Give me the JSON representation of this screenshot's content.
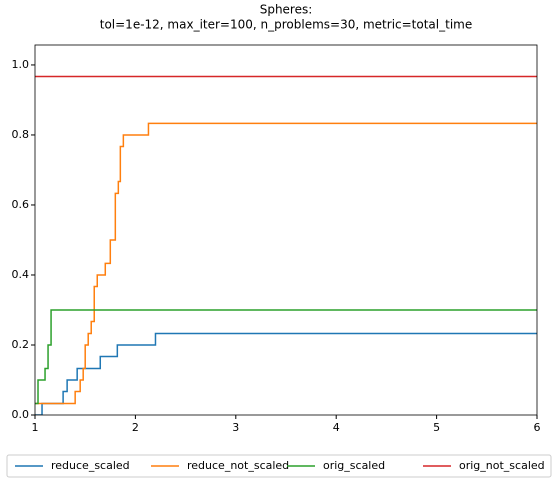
{
  "chart_data": {
    "type": "line",
    "step": "post",
    "title": "Spheres:",
    "subtitle": "tol=1e-12, max_iter=100, n_problems=30, metric=total_time",
    "xlim": [
      1,
      6
    ],
    "xticks": [
      1,
      2,
      3,
      4,
      5,
      6
    ],
    "ylim": [
      0,
      1.057
    ],
    "yticks": [
      {
        "value": 0,
        "label": "0.0"
      },
      {
        "value": 0.2,
        "label": "0.2"
      },
      {
        "value": 0.4,
        "label": "0.4"
      },
      {
        "value": 0.6,
        "label": "0.6"
      },
      {
        "value": 0.8,
        "label": "0.8"
      },
      {
        "value": 1.0,
        "label": "1.0"
      }
    ],
    "legend": "below",
    "series": [
      {
        "name": "reduce_scaled",
        "color": "#1f77b4",
        "x": [
          1,
          1.07,
          1.28,
          1.32,
          1.42,
          1.65,
          1.82,
          2.2,
          6
        ],
        "values": [
          0,
          0.033,
          0.067,
          0.1,
          0.133,
          0.167,
          0.2,
          0.233,
          0.233
        ]
      },
      {
        "name": "reduce_not_scaled",
        "color": "#ff7f0e",
        "x": [
          1,
          1.4,
          1.45,
          1.48,
          1.5,
          1.53,
          1.56,
          1.59,
          1.62,
          1.7,
          1.75,
          1.8,
          1.83,
          1.85,
          1.88,
          2.13,
          6
        ],
        "values": [
          0.033,
          0.067,
          0.1,
          0.133,
          0.2,
          0.233,
          0.267,
          0.367,
          0.4,
          0.433,
          0.5,
          0.633,
          0.667,
          0.767,
          0.8,
          0.833,
          0.833
        ]
      },
      {
        "name": "orig_scaled",
        "color": "#2ca02c",
        "x": [
          1,
          1.03,
          1.1,
          1.13,
          1.16,
          6
        ],
        "values": [
          0.033,
          0.1,
          0.133,
          0.2,
          0.3,
          0.3
        ]
      },
      {
        "name": "orig_not_scaled",
        "color": "#d62728",
        "x": [
          1,
          6
        ],
        "values": [
          0.967,
          0.967
        ]
      }
    ]
  }
}
